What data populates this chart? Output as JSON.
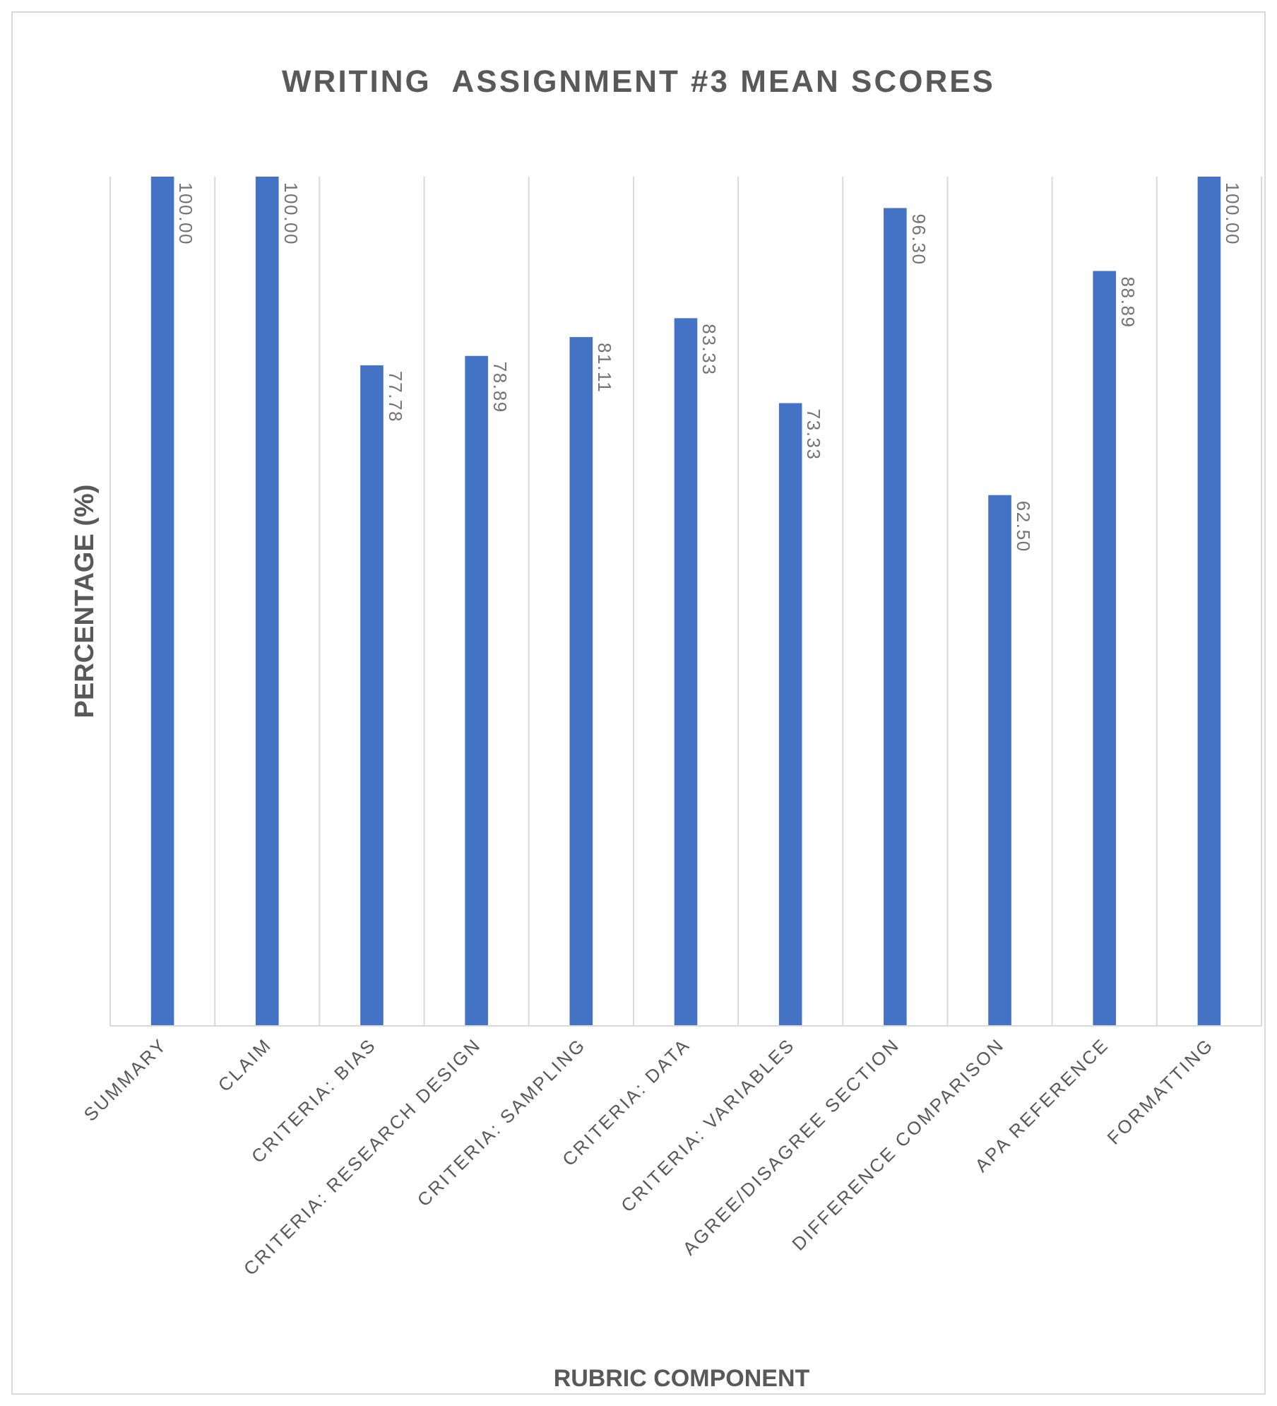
{
  "chart_data": {
    "type": "bar",
    "title": "WRITING  ASSIGNMENT #3 MEAN SCORES",
    "xlabel": "RUBRIC COMPONENT",
    "ylabel": "PERCENTAGE (%)",
    "categories": [
      "SUMMARY",
      "CLAIM",
      "CRITERIA: BIAS",
      "CRITERIA: RESEARCH DESIGN",
      "CRITERIA: SAMPLING",
      "CRITERIA: DATA",
      "CRITERIA: VARIABLES",
      "AGREE/DISAGREE SECTION",
      "DIFFERENCE COMPARISON",
      "APA REFERENCE",
      "FORMATTING"
    ],
    "values": [
      100,
      100,
      77.78,
      78.89,
      81.11,
      83.33,
      73.33,
      96.3,
      62.5,
      88.89,
      100
    ],
    "value_labels": [
      "100.00",
      "100.00",
      "77.78",
      "78.89",
      "81.11",
      "83.33",
      "73.33",
      "96.30",
      "62.50",
      "88.89",
      "100.00"
    ],
    "color": "#4472c4",
    "ylim": [
      0,
      100
    ],
    "grid": "x",
    "tick_labels": "x"
  }
}
